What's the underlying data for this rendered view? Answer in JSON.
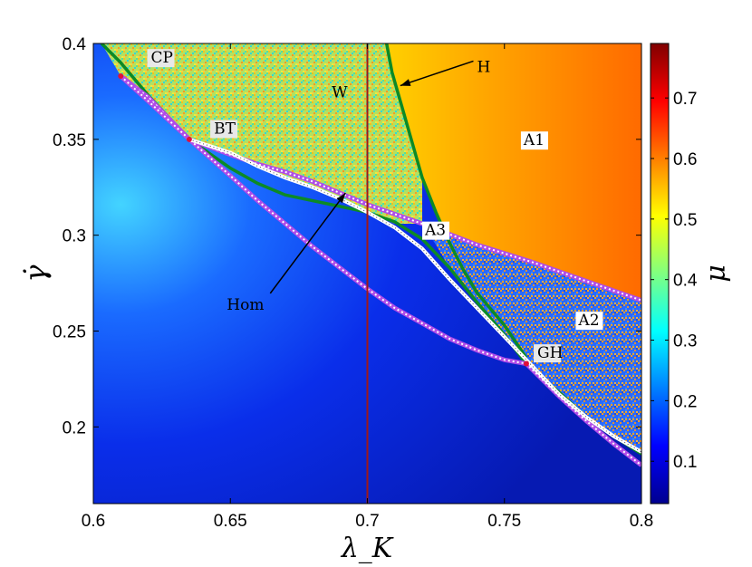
{
  "chart_data": {
    "type": "heatmap",
    "title": "",
    "xlabel": "λ_K",
    "ylabel": "γ̇",
    "xlim": [
      0.6,
      0.8
    ],
    "ylim": [
      0.16,
      0.4
    ],
    "x_ticks": [
      "0.6",
      "0.65",
      "0.7",
      "0.75",
      "0.8"
    ],
    "x_tick_values": [
      0.6,
      0.65,
      0.7,
      0.75,
      0.8
    ],
    "y_ticks": [
      "0.2",
      "0.25",
      "0.3",
      "0.35",
      "0.4"
    ],
    "y_tick_values": [
      0.2,
      0.25,
      0.3,
      0.35,
      0.4
    ],
    "colorbar": {
      "label": "μ",
      "range": [
        0.03,
        0.79
      ],
      "ticks": [
        "0.1",
        "0.2",
        "0.3",
        "0.4",
        "0.5",
        "0.6",
        "0.7"
      ],
      "tick_values": [
        0.1,
        0.2,
        0.3,
        0.4,
        0.5,
        0.6,
        0.7
      ],
      "colormap": "jet"
    },
    "region_labels": [
      {
        "text": "A1",
        "x": 0.757,
        "y": 0.347
      },
      {
        "text": "W",
        "x": 0.687,
        "y": 0.372
      },
      {
        "text": "A3",
        "x": 0.721,
        "y": 0.3
      },
      {
        "text": "A2",
        "x": 0.777,
        "y": 0.253
      }
    ],
    "points": [
      {
        "name": "CP",
        "x": 0.61,
        "y": 0.383,
        "label_x": 0.621,
        "label_y": 0.39
      },
      {
        "name": "BT",
        "x": 0.635,
        "y": 0.35,
        "label_x": 0.644,
        "label_y": 0.353
      },
      {
        "name": "GH",
        "x": 0.758,
        "y": 0.233,
        "label_x": 0.762,
        "label_y": 0.236
      }
    ],
    "annotations": [
      {
        "text": "H",
        "text_x": 0.74,
        "text_y": 0.388,
        "arrow_to_x": 0.712,
        "arrow_to_y": 0.378
      },
      {
        "text": "Hom",
        "text_x": 0.652,
        "text_y": 0.264,
        "arrow_to_x": 0.692,
        "arrow_to_y": 0.322
      }
    ],
    "vertical_line": {
      "x": 0.7,
      "color": "#a01818"
    },
    "curves": [
      {
        "name": "H",
        "style": "green",
        "points": [
          [
            0.603,
            0.4
          ],
          [
            0.61,
            0.39
          ],
          [
            0.62,
            0.373
          ],
          [
            0.635,
            0.35
          ],
          [
            0.65,
            0.335
          ],
          [
            0.66,
            0.327
          ],
          [
            0.67,
            0.321
          ],
          [
            0.68,
            0.318
          ],
          [
            0.69,
            0.315
          ],
          [
            0.7,
            0.312
          ],
          [
            0.71,
            0.307
          ],
          [
            0.72,
            0.298
          ],
          [
            0.73,
            0.283
          ],
          [
            0.74,
            0.265
          ],
          [
            0.75,
            0.248
          ],
          [
            0.758,
            0.233
          ],
          [
            0.77,
            0.218
          ],
          [
            0.78,
            0.205
          ],
          [
            0.79,
            0.195
          ],
          [
            0.8,
            0.186
          ]
        ]
      },
      {
        "name": "H-upper",
        "style": "green",
        "points": [
          [
            0.707,
            0.4
          ],
          [
            0.709,
            0.385
          ],
          [
            0.712,
            0.37
          ],
          [
            0.716,
            0.35
          ],
          [
            0.72,
            0.33
          ],
          [
            0.725,
            0.312
          ],
          [
            0.73,
            0.296
          ],
          [
            0.735,
            0.282
          ],
          [
            0.74,
            0.27
          ],
          [
            0.75,
            0.253
          ],
          [
            0.758,
            0.236
          ]
        ]
      },
      {
        "name": "fold-upper",
        "style": "purple",
        "points": [
          [
            0.61,
            0.383
          ],
          [
            0.62,
            0.372
          ],
          [
            0.635,
            0.35
          ],
          [
            0.65,
            0.342
          ],
          [
            0.66,
            0.337
          ],
          [
            0.67,
            0.333
          ],
          [
            0.68,
            0.328
          ],
          [
            0.69,
            0.322
          ],
          [
            0.7,
            0.316
          ],
          [
            0.72,
            0.306
          ],
          [
            0.74,
            0.295
          ],
          [
            0.76,
            0.286
          ],
          [
            0.78,
            0.276
          ],
          [
            0.8,
            0.266
          ]
        ]
      },
      {
        "name": "fold-lower",
        "style": "purple",
        "points": [
          [
            0.61,
            0.383
          ],
          [
            0.62,
            0.37
          ],
          [
            0.635,
            0.35
          ],
          [
            0.65,
            0.331
          ],
          [
            0.66,
            0.318
          ],
          [
            0.67,
            0.306
          ],
          [
            0.68,
            0.294
          ],
          [
            0.69,
            0.283
          ],
          [
            0.7,
            0.272
          ],
          [
            0.71,
            0.262
          ],
          [
            0.72,
            0.254
          ],
          [
            0.73,
            0.246
          ],
          [
            0.74,
            0.24
          ],
          [
            0.75,
            0.235
          ],
          [
            0.758,
            0.233
          ],
          [
            0.77,
            0.216
          ],
          [
            0.78,
            0.203
          ],
          [
            0.79,
            0.191
          ],
          [
            0.8,
            0.18
          ]
        ]
      },
      {
        "name": "Hom",
        "style": "white",
        "points": [
          [
            0.635,
            0.35
          ],
          [
            0.65,
            0.343
          ],
          [
            0.66,
            0.336
          ],
          [
            0.67,
            0.33
          ],
          [
            0.68,
            0.325
          ],
          [
            0.69,
            0.319
          ],
          [
            0.7,
            0.312
          ],
          [
            0.71,
            0.304
          ],
          [
            0.72,
            0.293
          ],
          [
            0.73,
            0.277
          ],
          [
            0.74,
            0.262
          ],
          [
            0.75,
            0.247
          ],
          [
            0.76,
            0.232
          ],
          [
            0.77,
            0.217
          ],
          [
            0.78,
            0.205
          ],
          [
            0.79,
            0.195
          ],
          [
            0.8,
            0.187
          ]
        ]
      }
    ],
    "grid": false,
    "legend": "none"
  }
}
